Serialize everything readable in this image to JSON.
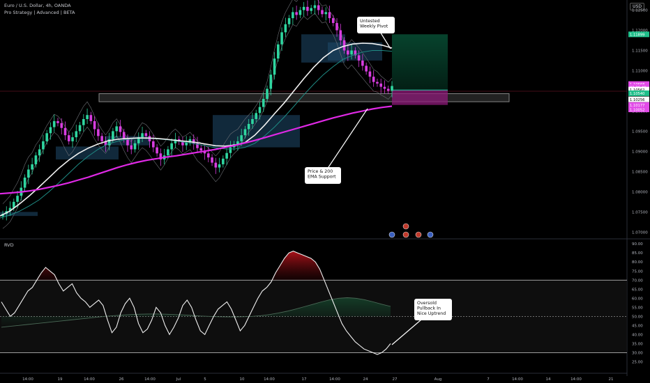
{
  "header": {
    "symbol": "Euro / U.S. Dollar, 4h, OANDA",
    "indicator": "Pro Strategy | Advanced | BETA",
    "currency": "USD"
  },
  "chart_data": [
    {
      "type": "candlestick",
      "title": "Euro / U.S. Dollar, 4h, OANDA",
      "ylim": [
        1.0685,
        1.1275
      ],
      "price_ticks": [
        "1.12500",
        "1.12000",
        "1.11500",
        "1.11000",
        "1.10500",
        "1.10000",
        "1.09500",
        "1.09000",
        "1.08500",
        "1.08000",
        "1.07500",
        "1.07000"
      ],
      "price_labels": [
        {
          "value": "1.11899",
          "price": 1.11899,
          "color": "#1fbf8a"
        },
        {
          "value": "1.10668",
          "price": 1.10668,
          "color": "#e24be8"
        },
        {
          "value": "02:36:49",
          "price": 1.1059,
          "color": "#e24be8"
        },
        {
          "value": "1.10562",
          "price": 1.1053,
          "color": "#ffffff"
        },
        {
          "value": "1.10540",
          "price": 1.1044,
          "color": "#1fbf8a"
        },
        {
          "value": "1.10256",
          "price": 1.1029,
          "color": "#ffffff"
        },
        {
          "value": "1.10177",
          "price": 1.1015,
          "color": "#e24be8"
        },
        {
          "value": "1.10052",
          "price": 1.1004,
          "color": "#e24be8"
        }
      ],
      "x_ticks": [
        "14:00",
        "19",
        "14:00",
        "26",
        "14:00",
        "Jul",
        "5",
        "10",
        "14:00",
        "17",
        "14:00",
        "24",
        "27",
        "Aug",
        "7",
        "14:00",
        "14",
        "14:00",
        "21"
      ],
      "series_close": [
        1.0745,
        1.0752,
        1.076,
        1.0775,
        1.079,
        1.081,
        1.0835,
        1.0855,
        1.0868,
        1.089,
        1.0905,
        1.0925,
        1.0945,
        1.096,
        1.0975,
        1.097,
        1.0958,
        1.094,
        1.0925,
        1.0935,
        1.095,
        1.0965,
        1.098,
        1.099,
        1.0975,
        1.0955,
        1.0938,
        1.0925,
        1.0915,
        1.093,
        1.095,
        1.0962,
        1.0948,
        1.093,
        1.0915,
        1.0905,
        1.092,
        1.0935,
        1.0945,
        1.0938,
        1.0925,
        1.091,
        1.0895,
        1.088,
        1.089,
        1.0905,
        1.092,
        1.093,
        1.0924,
        1.0915,
        1.0922,
        1.093,
        1.092,
        1.0908,
        1.0902,
        1.0895,
        1.0885,
        1.0872,
        1.086,
        1.0868,
        1.0882,
        1.0896,
        1.091,
        1.0918,
        1.0925,
        1.094,
        1.0955,
        1.0968,
        1.098,
        1.0995,
        1.101,
        1.103,
        1.1055,
        1.109,
        1.113,
        1.1165,
        1.1195,
        1.1215,
        1.123,
        1.1245,
        1.1238,
        1.125,
        1.1258,
        1.1248,
        1.1255,
        1.1262,
        1.125,
        1.124,
        1.1245,
        1.123,
        1.1218,
        1.12,
        1.1175,
        1.115,
        1.114,
        1.115,
        1.1138,
        1.1125,
        1.1112,
        1.1098,
        1.1085,
        1.1072,
        1.1068,
        1.106,
        1.1055,
        1.105,
        1.1062
      ],
      "ema_fast": [
        1.074,
        1.0752,
        1.077,
        1.079,
        1.0812,
        1.0835,
        1.0858,
        1.0878,
        1.0895,
        1.0908,
        1.0918,
        1.0926,
        1.093,
        1.0932,
        1.0933,
        1.0933,
        1.0932,
        1.093,
        1.0927,
        1.0925,
        1.0922,
        1.0918,
        1.0914,
        1.0913,
        1.0916,
        1.0922,
        1.094,
        1.0965,
        1.0993,
        1.102,
        1.105,
        1.108,
        1.1108,
        1.1132,
        1.115,
        1.116,
        1.1166,
        1.1168,
        1.1167,
        1.1163,
        1.1156
      ],
      "ema_mid": [
        1.0735,
        1.0742,
        1.0752,
        1.0765,
        1.078,
        1.08,
        1.0822,
        1.0845,
        1.0868,
        1.0888,
        1.0905,
        1.0918,
        1.0925,
        1.093,
        1.0932,
        1.0932,
        1.0931,
        1.0929,
        1.0926,
        1.0922,
        1.0918,
        1.0914,
        1.0909,
        1.0906,
        1.0906,
        1.091,
        1.092,
        1.0938,
        1.096,
        1.0985,
        1.1012,
        1.104,
        1.1066,
        1.109,
        1.111,
        1.1128,
        1.1138,
        1.1146,
        1.115,
        1.115,
        1.1148
      ],
      "ema_200": [
        1.0795,
        1.0797,
        1.0799,
        1.0802,
        1.0806,
        1.0811,
        1.0816,
        1.0822,
        1.0829,
        1.0836,
        1.0844,
        1.0852,
        1.086,
        1.0867,
        1.0873,
        1.0878,
        1.0882,
        1.0886,
        1.0889,
        1.0893,
        1.0897,
        1.0901,
        1.0905,
        1.091,
        1.0915,
        1.0921,
        1.0927,
        1.0934,
        1.0941,
        1.0948,
        1.0955,
        1.0962,
        1.0969,
        1.0976,
        1.0983,
        1.0989,
        1.0995,
        1.1,
        1.1005,
        1.1009,
        1.1012
      ],
      "support_zone": [
        1.1023,
        1.1043
      ],
      "long_position": {
        "entry": 1.1052,
        "target": 1.119,
        "stop": 1.1015
      },
      "annotations": [
        {
          "text": "Untested\nWeekly Pivot"
        },
        {
          "text": "Price & 200\nEMA Support"
        }
      ]
    },
    {
      "type": "line",
      "title": "RVD",
      "ylim": [
        24,
        92
      ],
      "y_ticks": [
        "90.00",
        "85.00",
        "80.00",
        "75.00",
        "70.00",
        "65.00",
        "60.00",
        "55.00",
        "50.00",
        "45.00",
        "40.00",
        "35.00",
        "30.00",
        "25.00"
      ],
      "overbought": 70,
      "midline": 50,
      "oversold": 30,
      "values": [
        58,
        54,
        50,
        52,
        56,
        60,
        64,
        66,
        70,
        74,
        77,
        75,
        73,
        68,
        64,
        66,
        68,
        63,
        60,
        58,
        55,
        57,
        59,
        56,
        48,
        41,
        44,
        52,
        57,
        60,
        55,
        46,
        41,
        43,
        48,
        55,
        52,
        45,
        40,
        44,
        49,
        56,
        59,
        55,
        48,
        42,
        40,
        45,
        50,
        54,
        56,
        58,
        54,
        48,
        42,
        45,
        50,
        55,
        60,
        64,
        66,
        69,
        74,
        78,
        82,
        85,
        86,
        85,
        84,
        83,
        82,
        80,
        76,
        70,
        64,
        58,
        52,
        46,
        42,
        39,
        36,
        34,
        32,
        31,
        30,
        29,
        30,
        32,
        35
      ],
      "signal": [
        44,
        44.5,
        45,
        45.5,
        46,
        46.5,
        47,
        47.5,
        48,
        48.5,
        49,
        49.5,
        50,
        50.4,
        50.7,
        51,
        51.2,
        51.3,
        51.3,
        51.2,
        51,
        50.8,
        50.5,
        50.2,
        50,
        49.8,
        49.7,
        49.7,
        49.8,
        50,
        50.4,
        51,
        51.8,
        52.8,
        54,
        55.3,
        56.6,
        58,
        59.2,
        60,
        60.3,
        60,
        59.2,
        58,
        56.7,
        55.5
      ],
      "annotations": [
        {
          "text": "Oversold\nPullback In\nNice Uptrend"
        }
      ]
    }
  ]
}
